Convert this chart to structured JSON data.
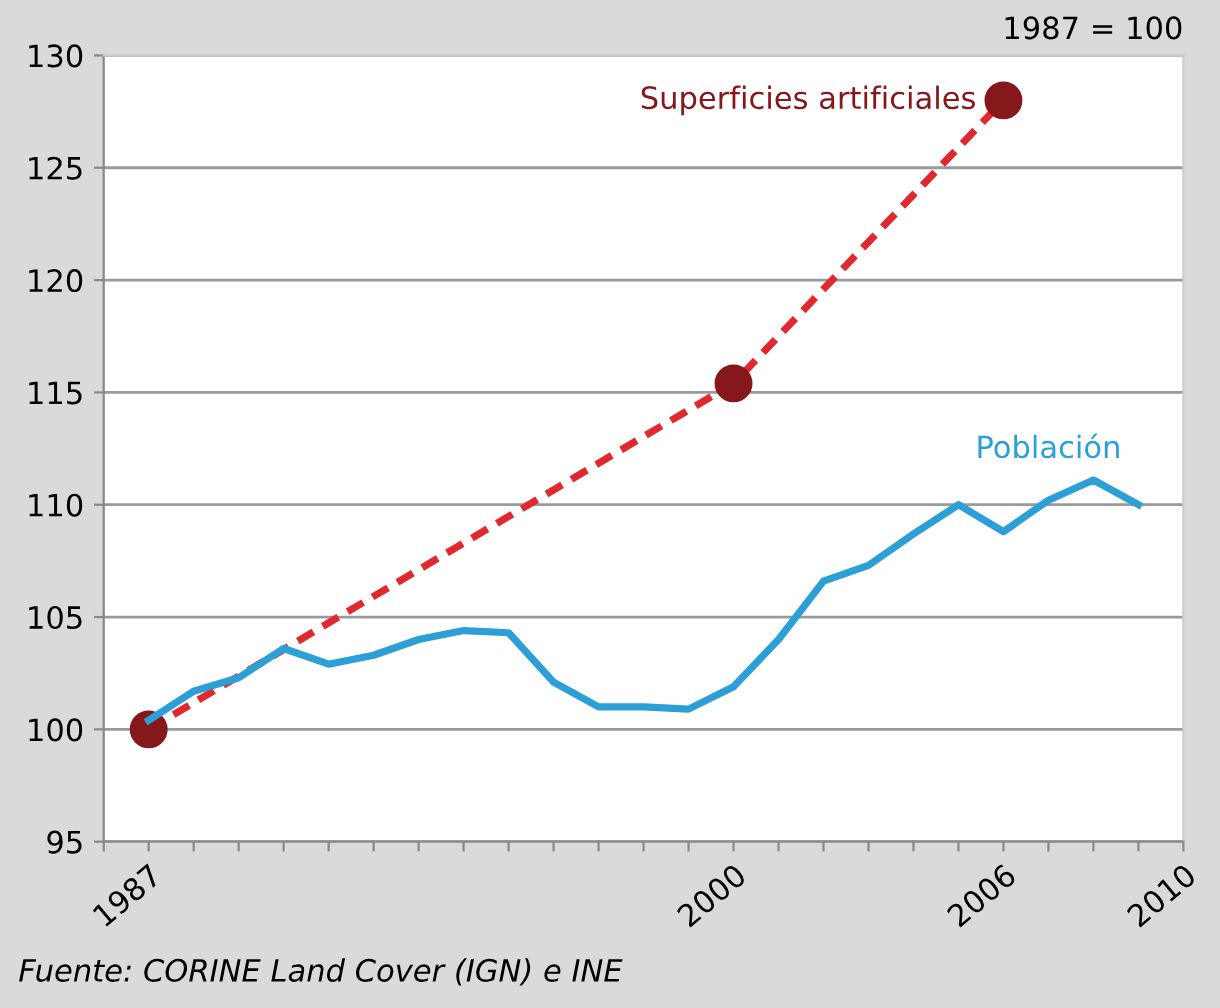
{
  "chart_data": {
    "type": "line",
    "xlim": [
      1986,
      2010
    ],
    "xticks": [
      {
        "value": 1986,
        "label": null
      },
      1987,
      {
        "value": 1988,
        "label": null
      },
      {
        "value": 1989,
        "label": null
      },
      {
        "value": 1990,
        "label": null
      },
      {
        "value": 1991,
        "label": null
      },
      {
        "value": 1992,
        "label": null
      },
      {
        "value": 1993,
        "label": null
      },
      {
        "value": 1994,
        "label": null
      },
      {
        "value": 1995,
        "label": null
      },
      {
        "value": 1996,
        "label": null
      },
      {
        "value": 1997,
        "label": null
      },
      {
        "value": 1998,
        "label": null
      },
      {
        "value": 1999,
        "label": null
      },
      2000,
      {
        "value": 2001,
        "label": null
      },
      {
        "value": 2002,
        "label": null
      },
      {
        "value": 2003,
        "label": null
      },
      {
        "value": 2004,
        "label": null
      },
      {
        "value": 2005,
        "label": null
      },
      2006,
      {
        "value": 2007,
        "label": null
      },
      {
        "value": 2008,
        "label": null
      },
      {
        "value": 2009,
        "label": null
      },
      2010
    ],
    "ylim": [
      95,
      130
    ],
    "yticks": [
      95,
      100,
      105,
      110,
      115,
      120,
      125,
      130
    ],
    "grid": "y",
    "legend": false,
    "series": [
      {
        "name": "Superficies artificiales",
        "color": "#e0282e",
        "marker": "circle",
        "line_style": "dashed",
        "x": [
          1987,
          2000,
          2006
        ],
        "values": [
          100,
          115.4,
          128
        ]
      },
      {
        "name": "Población",
        "color": "#2b9fd6",
        "marker": "none",
        "line_style": "solid",
        "x": [
          1987,
          1988,
          1989,
          1990,
          1991,
          1992,
          1993,
          1994,
          1995,
          1996,
          1997,
          1998,
          1999,
          2000,
          2001,
          2002,
          2003,
          2004,
          2005,
          2006,
          2007,
          2008,
          2009
        ],
        "values": [
          100.4,
          101.7,
          102.3,
          103.6,
          102.9,
          103.3,
          104.0,
          104.4,
          104.3,
          102.1,
          101.0,
          101.0,
          100.9,
          101.9,
          104.0,
          106.6,
          107.3,
          108.7,
          110.0,
          108.8,
          110.2,
          111.1,
          110.0
        ]
      }
    ],
    "annotations": [
      "1987 = 100",
      "Fuente: CORINE Land Cover (IGN) e INE"
    ]
  }
}
